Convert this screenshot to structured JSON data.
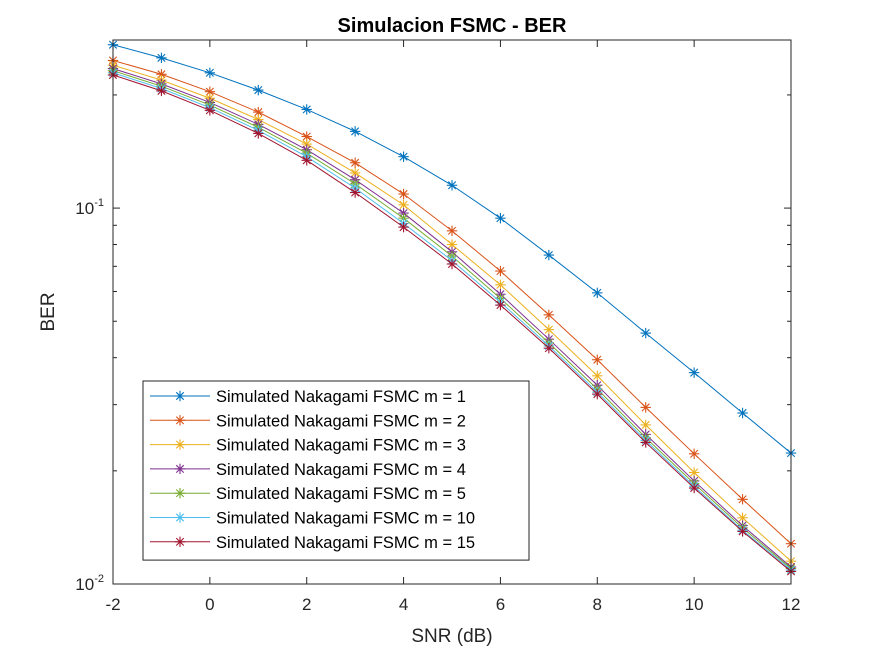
{
  "chart_data": {
    "type": "line",
    "title": "Simulacion FSMC - BER",
    "xlabel": "SNR (dB)",
    "ylabel": "BER",
    "yscale": "log",
    "xlim": [
      -2,
      12
    ],
    "ylim": [
      0.01,
      0.28
    ],
    "xticks": [
      -2,
      0,
      2,
      4,
      6,
      8,
      10,
      12
    ],
    "xtick_labels": [
      "-2",
      "0",
      "2",
      "4",
      "6",
      "8",
      "10",
      "12"
    ],
    "ytick_labels": [
      {
        "base": "10",
        "exp": "-1",
        "value": 0.1
      },
      {
        "base": "10",
        "exp": "-2",
        "value": 0.01
      }
    ],
    "grid": false,
    "marker": "asterisk",
    "legend_position": "bottom-left",
    "x": [
      -2,
      -1,
      0,
      1,
      2,
      3,
      4,
      5,
      6,
      7,
      8,
      9,
      10,
      11,
      12
    ],
    "series": [
      {
        "name": "Simulated Nakagami FSMC m = 1",
        "color": "#0072BD",
        "values": [
          0.272,
          0.251,
          0.229,
          0.206,
          0.183,
          0.16,
          0.137,
          0.115,
          0.094,
          0.075,
          0.0595,
          0.0465,
          0.0365,
          0.0285,
          0.0223
        ]
      },
      {
        "name": "Simulated Nakagami FSMC m = 2",
        "color": "#D95319",
        "values": [
          0.247,
          0.227,
          0.204,
          0.18,
          0.155,
          0.132,
          0.109,
          0.087,
          0.068,
          0.052,
          0.0395,
          0.0295,
          0.0222,
          0.0168,
          0.0128
        ]
      },
      {
        "name": "Simulated Nakagami FSMC m = 3",
        "color": "#EDB120",
        "values": [
          0.24,
          0.219,
          0.196,
          0.172,
          0.148,
          0.124,
          0.102,
          0.08,
          0.0625,
          0.0475,
          0.0358,
          0.0265,
          0.0198,
          0.015,
          0.0115
        ]
      },
      {
        "name": "Simulated Nakagami FSMC m = 4",
        "color": "#7E2F8E",
        "values": [
          0.235,
          0.214,
          0.191,
          0.167,
          0.143,
          0.119,
          0.097,
          0.0765,
          0.059,
          0.0448,
          0.0338,
          0.025,
          0.0188,
          0.0143,
          0.0111
        ]
      },
      {
        "name": "Simulated Nakagami FSMC m = 5",
        "color": "#77AC30",
        "values": [
          0.232,
          0.211,
          0.188,
          0.164,
          0.14,
          0.116,
          0.094,
          0.0745,
          0.0575,
          0.0438,
          0.033,
          0.0245,
          0.0185,
          0.0141,
          0.011
        ]
      },
      {
        "name": "Simulated Nakagami FSMC m = 10",
        "color": "#4DBEEE",
        "values": [
          0.229,
          0.208,
          0.185,
          0.161,
          0.137,
          0.113,
          0.091,
          0.0725,
          0.0562,
          0.043,
          0.0324,
          0.0241,
          0.0182,
          0.0139,
          0.0109
        ]
      },
      {
        "name": "Simulated Nakagami FSMC m = 15",
        "color": "#A2142F",
        "values": [
          0.226,
          0.205,
          0.182,
          0.158,
          0.134,
          0.11,
          0.089,
          0.071,
          0.0552,
          0.0424,
          0.032,
          0.0238,
          0.018,
          0.0138,
          0.0108
        ]
      }
    ]
  }
}
